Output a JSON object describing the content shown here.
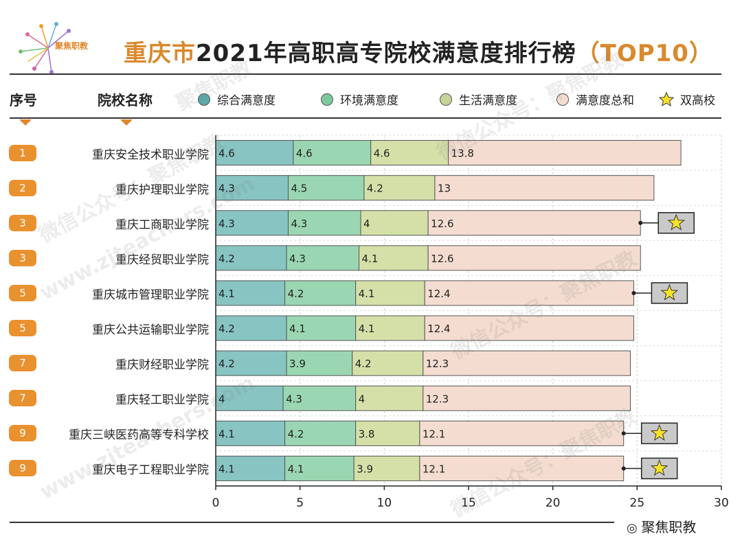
{
  "header": {
    "brand": "聚焦职教",
    "title_part1": "重庆市",
    "title_part2": "2021年高职高专院校满意度排行榜",
    "title_part3": "（TOP10）"
  },
  "columns": {
    "rank": "序号",
    "school": "院校名称"
  },
  "legend": [
    {
      "label": "综合满意度",
      "color": "#7fbfbf"
    },
    {
      "label": "环境满意度",
      "color": "#8fd0a8"
    },
    {
      "label": "生活满意度",
      "color": "#cfdca3"
    },
    {
      "label": "满意度总和",
      "color": "#f4ddd0"
    },
    {
      "label": "双高校",
      "color": "#f5e12a"
    }
  ],
  "footer": {
    "brand": "聚焦职教"
  },
  "watermarks": [
    "聚焦职教",
    "微信公众号：聚焦职教",
    "www.zjteachers.com"
  ],
  "chart_data": {
    "type": "bar",
    "orientation": "horizontal",
    "stacked": true,
    "categories": [
      "重庆安全技术职业学院",
      "重庆护理职业学院",
      "重庆工商职业学院",
      "重庆经贸职业学院",
      "重庆城市管理职业学院",
      "重庆公共运输职业学院",
      "重庆财经职业学院",
      "重庆轻工职业学院",
      "重庆三峡医药高等专科学校",
      "重庆电子工程职业学院"
    ],
    "ranks": [
      "1",
      "2",
      "3",
      "3",
      "5",
      "5",
      "7",
      "7",
      "9",
      "9"
    ],
    "series": [
      {
        "name": "综合满意度",
        "values": [
          4.6,
          4.3,
          4.3,
          4.2,
          4.1,
          4.2,
          4.2,
          4,
          4.1,
          4.1
        ]
      },
      {
        "name": "环境满意度",
        "values": [
          4.6,
          4.5,
          4.3,
          4.3,
          4.2,
          4.1,
          3.9,
          4.3,
          4.2,
          4.1
        ]
      },
      {
        "name": "生活满意度",
        "values": [
          4.6,
          4.2,
          4,
          4.1,
          4.1,
          4.1,
          4.2,
          4,
          3.8,
          3.9
        ]
      },
      {
        "name": "满意度总和",
        "values": [
          13.8,
          13,
          12.6,
          12.6,
          12.4,
          12.4,
          12.3,
          12.3,
          12.1,
          12.1
        ]
      }
    ],
    "double_high": [
      false,
      false,
      true,
      false,
      true,
      false,
      false,
      false,
      true,
      true
    ],
    "xlim": [
      0,
      30
    ],
    "xticks": [
      0,
      5,
      10,
      15,
      20,
      25,
      30
    ],
    "grid": true
  }
}
